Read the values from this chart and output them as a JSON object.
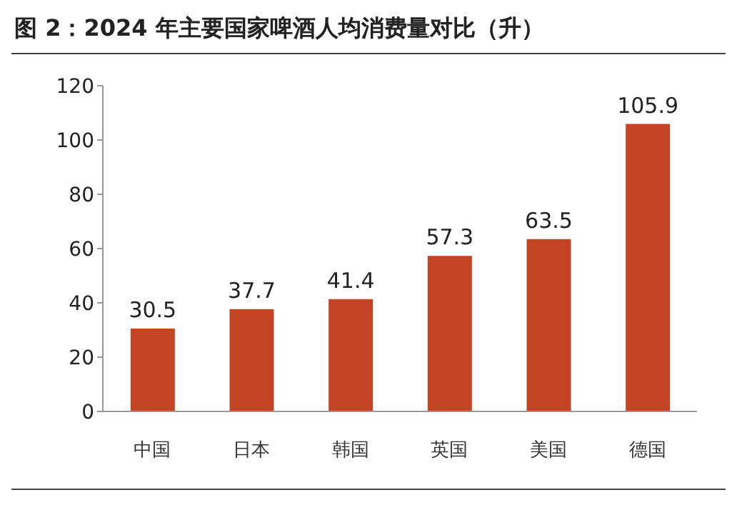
{
  "chart_data": {
    "type": "bar",
    "title": "图 2：2024 年主要国家啤酒人均消费量对比（升）",
    "categories": [
      "中国",
      "日本",
      "韩国",
      "英国",
      "美国",
      "德国"
    ],
    "values": [
      30.5,
      37.7,
      41.4,
      57.3,
      63.5,
      105.9
    ],
    "color": "#c44426",
    "ylim": [
      0,
      120
    ],
    "yticks": [
      0,
      20,
      40,
      60,
      80,
      100,
      120
    ],
    "grid": false,
    "data_labels": true
  }
}
